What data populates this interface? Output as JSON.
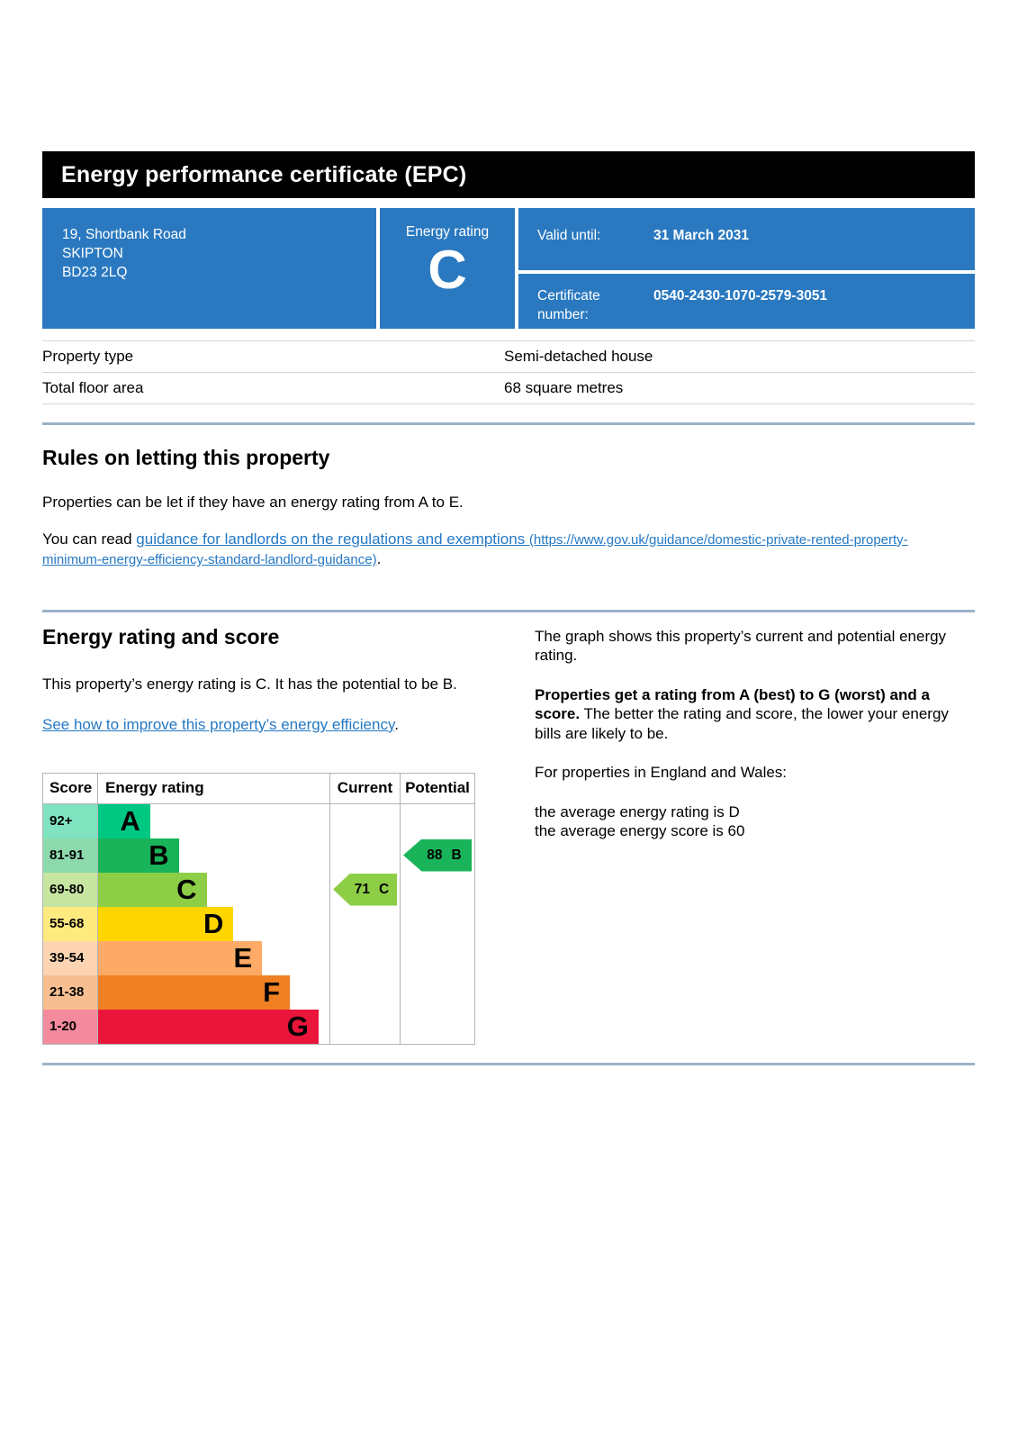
{
  "page_title": "Energy performance certificate (EPC)",
  "colors": {
    "header_bg": "#000000",
    "panel_blue": "#2a79c0",
    "link_blue": "#2478c4",
    "section_divider_blue": "#9bb3c8"
  },
  "summary": {
    "address_lines": [
      "19, Shortbank Road",
      "SKIPTON",
      "BD23 2LQ"
    ],
    "energy_rating_label": "Energy rating",
    "energy_rating": "C",
    "valid_until_label": "Valid until:",
    "valid_until_value": "31 March 2031",
    "certificate_number_label": "Certificate number:",
    "certificate_number_value": "0540-2430-1070-2579-3051"
  },
  "property_details": {
    "rows": [
      {
        "label": "Property type",
        "value": "Semi-detached house"
      },
      {
        "label": "Total floor area",
        "value": "68 square metres"
      }
    ]
  },
  "rules_section": {
    "heading": "Rules on letting this property",
    "paragraph1": "Properties can be let if they have an energy rating from A to E.",
    "paragraph2_prefix": "You can read ",
    "link_text": "guidance for landlords on the regulations and exemptions ",
    "link_url_text": "(https://www.gov.uk/guidance/domestic-private-rented-property-minimum-energy-efficiency-standard-landlord-guidance)",
    "paragraph2_suffix": "."
  },
  "rating_section": {
    "heading": "Energy rating and score",
    "paragraph1": "This property’s energy rating is C. It has the potential to be B.",
    "improve_link_text": "See how to improve this property’s energy efficiency",
    "improve_link_suffix": ".",
    "right_column": {
      "p1": "The graph shows this property’s current and potential energy rating.",
      "p2_bold": "Properties get a rating from A (best) to G (worst) and a score.",
      "p2_rest": " The better the rating and score, the lower your energy bills are likely to be.",
      "p3": "For properties in England and Wales:",
      "p4_line1": "the average energy rating is D",
      "p4_line2": "the average energy score is 60"
    }
  },
  "chart_data": {
    "type": "bar",
    "title": "Energy rating and score",
    "columns": [
      "Score",
      "Energy rating",
      "Current",
      "Potential"
    ],
    "bands": [
      {
        "score_range": "92+",
        "letter": "A",
        "color": "#00c781",
        "bar_width_pct": 22.5
      },
      {
        "score_range": "81-91",
        "letter": "B",
        "color": "#19b459",
        "bar_width_pct": 34.9
      },
      {
        "score_range": "69-80",
        "letter": "C",
        "color": "#8dce46",
        "bar_width_pct": 46.9
      },
      {
        "score_range": "55-68",
        "letter": "D",
        "color": "#ffd500",
        "bar_width_pct": 58.5
      },
      {
        "score_range": "39-54",
        "letter": "E",
        "color": "#fcaa65",
        "bar_width_pct": 70.9
      },
      {
        "score_range": "21-38",
        "letter": "F",
        "color": "#ef8023",
        "bar_width_pct": 82.9
      },
      {
        "score_range": "1-20",
        "letter": "G",
        "color": "#e9153b",
        "bar_width_pct": 95.3
      }
    ],
    "current": {
      "score": "71",
      "letter": "C",
      "color": "#8dce46",
      "band_index": 2
    },
    "potential": {
      "score": "88",
      "letter": "B",
      "color": "#19b459",
      "band_index": 1
    }
  }
}
